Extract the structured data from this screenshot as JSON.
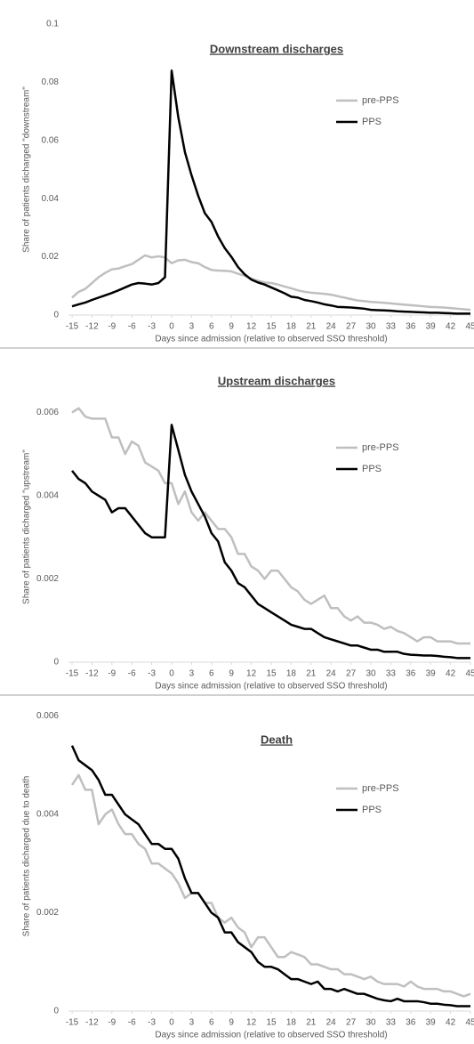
{
  "chart_data": [
    {
      "type": "line",
      "title": "Downstream discharges",
      "xlabel": "Days since admission (relative to observed SSO threshold)",
      "ylabel": "Share of patients dicharged \"downstream\"",
      "x": [
        -15,
        -14,
        -13,
        -12,
        -11,
        -10,
        -9,
        -8,
        -7,
        -6,
        -5,
        -4,
        -3,
        -2,
        -1,
        0,
        1,
        2,
        3,
        4,
        5,
        6,
        7,
        8,
        9,
        10,
        11,
        12,
        13,
        14,
        15,
        16,
        17,
        18,
        19,
        20,
        21,
        22,
        23,
        24,
        25,
        26,
        27,
        28,
        29,
        30,
        31,
        32,
        33,
        34,
        35,
        36,
        37,
        38,
        39,
        40,
        41,
        42,
        43,
        44,
        45
      ],
      "xlim": [
        -15,
        45
      ],
      "xticks": [
        -15,
        -12,
        -9,
        -6,
        -3,
        0,
        3,
        6,
        9,
        12,
        15,
        18,
        21,
        24,
        27,
        30,
        33,
        36,
        39,
        42,
        45
      ],
      "ylim": [
        0,
        0.1
      ],
      "yticks": [
        0,
        0.02,
        0.04,
        0.06,
        0.08,
        0.1
      ],
      "legend": "upper right",
      "grid": false,
      "series": [
        {
          "name": "pre-PPS",
          "color": "#bfbfbf",
          "values": [
            0.006,
            0.008,
            0.009,
            0.011,
            0.013,
            0.0145,
            0.0157,
            0.016,
            0.0168,
            0.0175,
            0.019,
            0.0205,
            0.0198,
            0.0202,
            0.0198,
            0.0178,
            0.0188,
            0.019,
            0.0182,
            0.0178,
            0.0165,
            0.0155,
            0.0153,
            0.0152,
            0.015,
            0.0142,
            0.0135,
            0.0125,
            0.0118,
            0.0112,
            0.011,
            0.0105,
            0.0098,
            0.0092,
            0.0085,
            0.008,
            0.0077,
            0.0075,
            0.0073,
            0.007,
            0.0065,
            0.006,
            0.0055,
            0.005,
            0.0048,
            0.0045,
            0.0044,
            0.0042,
            0.004,
            0.0038,
            0.0036,
            0.0034,
            0.0032,
            0.003,
            0.0028,
            0.0027,
            0.0026,
            0.0024,
            0.0022,
            0.002,
            0.0018
          ]
        },
        {
          "name": "PPS",
          "color": "#000000",
          "values": [
            0.003,
            0.0037,
            0.0043,
            0.0052,
            0.006,
            0.0068,
            0.0076,
            0.0085,
            0.0095,
            0.0105,
            0.011,
            0.0108,
            0.0105,
            0.011,
            0.013,
            0.084,
            0.068,
            0.056,
            0.048,
            0.041,
            0.035,
            0.032,
            0.027,
            0.023,
            0.02,
            0.0165,
            0.014,
            0.0122,
            0.0112,
            0.0105,
            0.0095,
            0.0085,
            0.0075,
            0.0063,
            0.006,
            0.0052,
            0.0048,
            0.0043,
            0.0037,
            0.0033,
            0.0028,
            0.0027,
            0.0026,
            0.0024,
            0.0022,
            0.0018,
            0.0017,
            0.0016,
            0.0015,
            0.0013,
            0.0012,
            0.0011,
            0.001,
            0.0009,
            0.0008,
            0.0008,
            0.0007,
            0.0006,
            0.0005,
            0.0005,
            0.0005
          ]
        }
      ]
    },
    {
      "type": "line",
      "title": "Upstream discharges",
      "xlabel": "Days since admission (relative to observed SSO threshold)",
      "ylabel": "Share of patients dicharged \"upstream\"",
      "x": [
        -15,
        -14,
        -13,
        -12,
        -11,
        -10,
        -9,
        -8,
        -7,
        -6,
        -5,
        -4,
        -3,
        -2,
        -1,
        0,
        1,
        2,
        3,
        4,
        5,
        6,
        7,
        8,
        9,
        10,
        11,
        12,
        13,
        14,
        15,
        16,
        17,
        18,
        19,
        20,
        21,
        22,
        23,
        24,
        25,
        26,
        27,
        28,
        29,
        30,
        31,
        32,
        33,
        34,
        35,
        36,
        37,
        38,
        39,
        40,
        41,
        42,
        43,
        44,
        45
      ],
      "xlim": [
        -15,
        45
      ],
      "xticks": [
        -15,
        -12,
        -9,
        -6,
        -3,
        0,
        3,
        6,
        9,
        12,
        15,
        18,
        21,
        24,
        27,
        30,
        33,
        36,
        39,
        42,
        45
      ],
      "ylim": [
        0,
        0.0065
      ],
      "yticks": [
        0,
        0.002,
        0.004,
        0.006
      ],
      "legend": "upper right",
      "grid": false,
      "series": [
        {
          "name": "pre-PPS",
          "color": "#bfbfbf",
          "values": [
            0.006,
            0.0061,
            0.0059,
            0.00585,
            0.00585,
            0.00585,
            0.0054,
            0.0054,
            0.005,
            0.0053,
            0.0052,
            0.0048,
            0.0047,
            0.0046,
            0.0043,
            0.0043,
            0.0038,
            0.0041,
            0.0036,
            0.0034,
            0.0036,
            0.0034,
            0.0032,
            0.0032,
            0.003,
            0.0026,
            0.0026,
            0.0023,
            0.0022,
            0.002,
            0.0022,
            0.0022,
            0.002,
            0.0018,
            0.0017,
            0.0015,
            0.0014,
            0.0015,
            0.0016,
            0.0013,
            0.0013,
            0.0011,
            0.001,
            0.0011,
            0.00095,
            0.00095,
            0.0009,
            0.0008,
            0.00085,
            0.00075,
            0.0007,
            0.0006,
            0.0005,
            0.0006,
            0.0006,
            0.0005,
            0.0005,
            0.0005,
            0.00045,
            0.00045,
            0.00045
          ]
        },
        {
          "name": "PPS",
          "color": "#000000",
          "values": [
            0.0046,
            0.0044,
            0.0043,
            0.0041,
            0.004,
            0.0039,
            0.0036,
            0.0037,
            0.0037,
            0.0035,
            0.0033,
            0.0031,
            0.003,
            0.003,
            0.003,
            0.0057,
            0.0051,
            0.0045,
            0.0041,
            0.0038,
            0.0035,
            0.0031,
            0.0029,
            0.0024,
            0.0022,
            0.0019,
            0.0018,
            0.0016,
            0.0014,
            0.0013,
            0.0012,
            0.0011,
            0.001,
            0.0009,
            0.00085,
            0.0008,
            0.0008,
            0.0007,
            0.0006,
            0.00055,
            0.0005,
            0.00045,
            0.0004,
            0.0004,
            0.00035,
            0.0003,
            0.0003,
            0.00025,
            0.00025,
            0.00025,
            0.0002,
            0.00018,
            0.00017,
            0.00016,
            0.00016,
            0.00015,
            0.00013,
            0.00012,
            0.0001,
            0.0001,
            0.0001
          ]
        }
      ]
    },
    {
      "type": "line",
      "title": "Death",
      "xlabel": "Days since admission (relative to observed SSO threshold)",
      "ylabel": "Share of patients dicharged due to death",
      "x": [
        -15,
        -14,
        -13,
        -12,
        -11,
        -10,
        -9,
        -8,
        -7,
        -6,
        -5,
        -4,
        -3,
        -2,
        -1,
        0,
        1,
        2,
        3,
        4,
        5,
        6,
        7,
        8,
        9,
        10,
        11,
        12,
        13,
        14,
        15,
        16,
        17,
        18,
        19,
        20,
        21,
        22,
        23,
        24,
        25,
        26,
        27,
        28,
        29,
        30,
        31,
        32,
        33,
        34,
        35,
        36,
        37,
        38,
        39,
        40,
        41,
        42,
        43,
        44,
        45
      ],
      "xlim": [
        -15,
        45
      ],
      "xticks": [
        -15,
        -12,
        -9,
        -6,
        -3,
        0,
        3,
        6,
        9,
        12,
        15,
        18,
        21,
        24,
        27,
        30,
        33,
        36,
        39,
        42,
        45
      ],
      "ylim": [
        0,
        0.0063
      ],
      "yticks": [
        0,
        0.002,
        0.004,
        0.006
      ],
      "legend": "upper right",
      "grid": false,
      "series": [
        {
          "name": "pre-PPS",
          "color": "#bfbfbf",
          "values": [
            0.0046,
            0.0048,
            0.0045,
            0.0045,
            0.0038,
            0.004,
            0.0041,
            0.0038,
            0.0036,
            0.0036,
            0.0034,
            0.0033,
            0.003,
            0.003,
            0.0029,
            0.0028,
            0.0026,
            0.0023,
            0.0024,
            0.0024,
            0.0022,
            0.0022,
            0.0019,
            0.0018,
            0.0019,
            0.0017,
            0.0016,
            0.0013,
            0.0015,
            0.0015,
            0.0013,
            0.0011,
            0.0011,
            0.0012,
            0.00115,
            0.0011,
            0.00095,
            0.00095,
            0.0009,
            0.00085,
            0.00085,
            0.00075,
            0.00075,
            0.0007,
            0.00065,
            0.0007,
            0.0006,
            0.00055,
            0.00055,
            0.00055,
            0.0005,
            0.0006,
            0.0005,
            0.00045,
            0.00045,
            0.00045,
            0.0004,
            0.0004,
            0.00035,
            0.0003,
            0.00035
          ]
        },
        {
          "name": "PPS",
          "color": "#000000",
          "values": [
            0.0054,
            0.0051,
            0.005,
            0.0049,
            0.0047,
            0.0044,
            0.0044,
            0.0042,
            0.004,
            0.0039,
            0.0038,
            0.0036,
            0.0034,
            0.0034,
            0.0033,
            0.0033,
            0.0031,
            0.0027,
            0.0024,
            0.0024,
            0.0022,
            0.002,
            0.0019,
            0.0016,
            0.0016,
            0.0014,
            0.0013,
            0.0012,
            0.001,
            0.0009,
            0.0009,
            0.00085,
            0.00075,
            0.00065,
            0.00065,
            0.0006,
            0.00055,
            0.0006,
            0.00045,
            0.00045,
            0.0004,
            0.00045,
            0.0004,
            0.00035,
            0.00035,
            0.0003,
            0.00025,
            0.00022,
            0.0002,
            0.00025,
            0.0002,
            0.0002,
            0.0002,
            0.00018,
            0.00015,
            0.00015,
            0.00013,
            0.00012,
            0.0001,
            0.0001,
            0.0001
          ]
        }
      ]
    }
  ]
}
